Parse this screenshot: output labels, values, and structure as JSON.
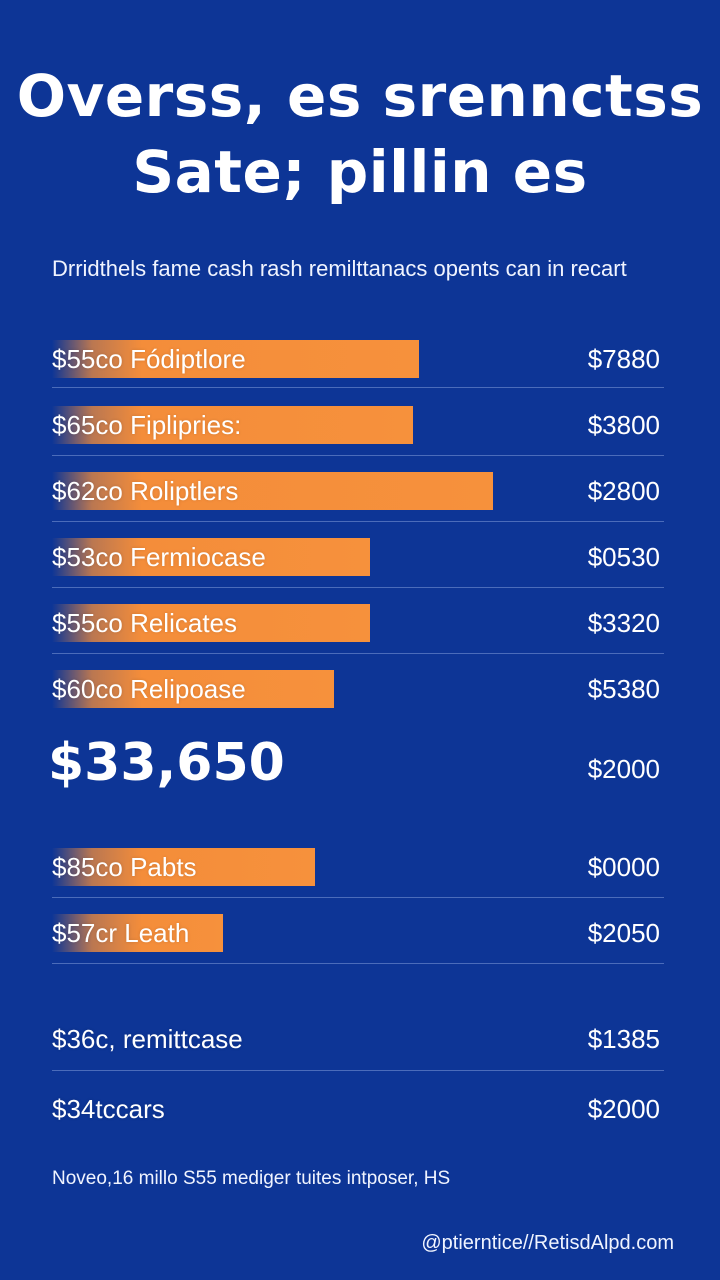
{
  "title_lines": [
    "Overss, es srennctss",
    "Sate; pillin es"
  ],
  "subtitle": "Drridthels fame cash rash remilttanacs opents can in recart",
  "chart_data": {
    "type": "bar",
    "title": "Overss, es srennctss Sate; pillin es",
    "subtitle": "Drridthels fame cash rash remilttanacs opents can in recart",
    "rows": [
      {
        "label": "$55co Fódiptlore",
        "value_text": "$7880",
        "bar": 0.6
      },
      {
        "label": "$65co Fiplipries:",
        "value_text": "$3800",
        "bar": 0.59
      },
      {
        "label": "$62co Roliptlers",
        "value_text": "$2800",
        "bar": 0.72
      },
      {
        "label": "$53co Fermiocase",
        "value_text": "$0530",
        "bar": 0.52
      },
      {
        "label": "$55co Relicates",
        "value_text": "$3320",
        "bar": 0.52
      },
      {
        "label": "$60co Relipoase",
        "value_text": "$5380",
        "bar": 0.46
      },
      {
        "label": "$85co Pabts",
        "value_text": "$0000",
        "bar": 0.43
      },
      {
        "label": "$57cr Leath",
        "value_text": "$2050",
        "bar": 0.28
      },
      {
        "label": "$36c, remittcase",
        "value_text": "$1385",
        "bar": 0
      },
      {
        "label": "$34tccars",
        "value_text": "$2000",
        "bar": 0
      }
    ],
    "total": {
      "label": "$33,650",
      "value_text": "$2000"
    },
    "colors": {
      "background": "#0d3596",
      "bar": "#f48d3a",
      "text": "#ffffff"
    },
    "grid": false,
    "legend": "none"
  },
  "footnote": "Noveo,16 millo S55 mediger tuites intposer, HS",
  "credit": "@ptierntice//RetisdAlpd.com"
}
